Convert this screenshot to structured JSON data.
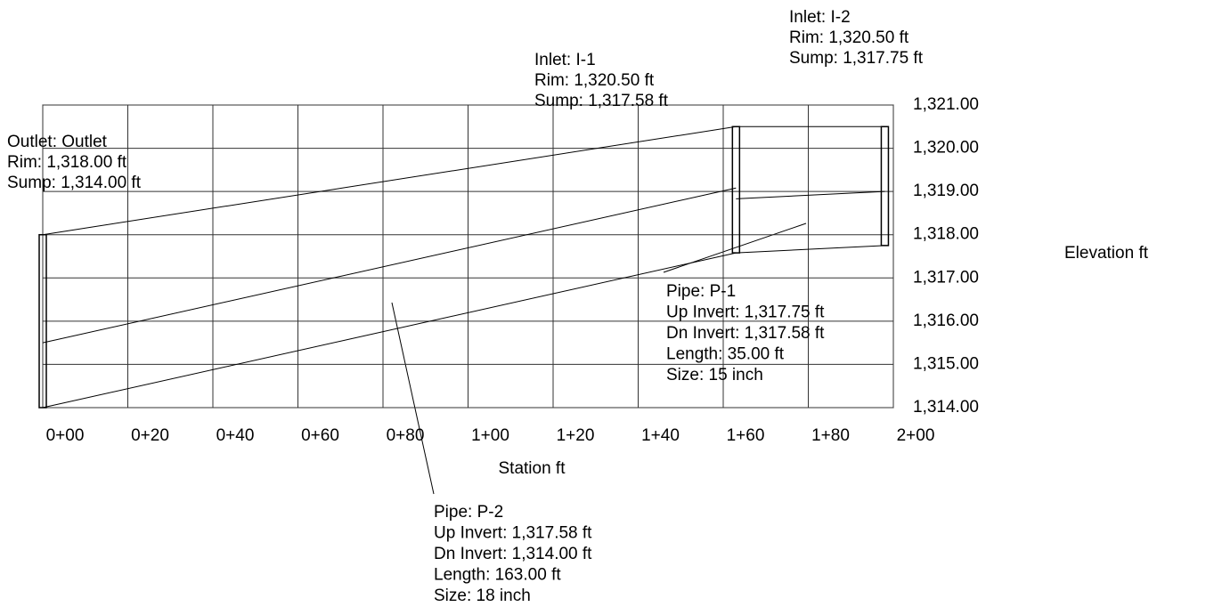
{
  "chart_data": {
    "type": "profile",
    "x_label": "Station  ft",
    "y_label": "Elevation  ft",
    "color": "#000000",
    "grid": true,
    "xlim": [
      0,
      200
    ],
    "xticks": [
      {
        "value": 0,
        "label": "0+00"
      },
      {
        "value": 20,
        "label": "0+20"
      },
      {
        "value": 40,
        "label": "0+40"
      },
      {
        "value": 60,
        "label": "0+60"
      },
      {
        "value": 80,
        "label": "0+80"
      },
      {
        "value": 100,
        "label": "1+00"
      },
      {
        "value": 120,
        "label": "1+20"
      },
      {
        "value": 140,
        "label": "1+40"
      },
      {
        "value": 160,
        "label": "1+60"
      },
      {
        "value": 180,
        "label": "1+80"
      },
      {
        "value": 200,
        "label": "2+00"
      }
    ],
    "ylim": [
      1314,
      1321
    ],
    "yticks": [
      {
        "value": 1314,
        "label": "1,314.00"
      },
      {
        "value": 1315,
        "label": "1,315.00"
      },
      {
        "value": 1316,
        "label": "1,316.00"
      },
      {
        "value": 1317,
        "label": "1,317.00"
      },
      {
        "value": 1318,
        "label": "1,318.00"
      },
      {
        "value": 1319,
        "label": "1,319.00"
      },
      {
        "value": 1320,
        "label": "1,320.00"
      },
      {
        "value": 1321,
        "label": "1,321.00"
      }
    ],
    "structures": [
      {
        "label": "Outlet: Outlet",
        "station": 0,
        "rim": 1318,
        "rim_label": "Rim: 1,318.00 ft",
        "sump": 1314,
        "sump_label": "Sump: 1,314.00 ft"
      },
      {
        "label": "Inlet: I-1",
        "station": 163,
        "rim": 1320.5,
        "rim_label": "Rim: 1,320.50 ft",
        "sump": 1317.58,
        "sump_label": "Sump: 1,317.58 ft"
      },
      {
        "label": "Inlet: I-2",
        "station": 198,
        "rim": 1320.5,
        "rim_label": "Rim: 1,320.50 ft",
        "sump": 1317.75,
        "sump_label": "Sump: 1,317.75 ft"
      }
    ],
    "pipes": [
      {
        "label": "Pipe: P-1",
        "start": 163,
        "end": 198,
        "up_invert": 1317.75,
        "up_label": "Up Invert: 1,317.75 ft",
        "dn_invert": 1317.58,
        "dn_label": "Dn Invert: 1,317.58 ft",
        "length": 35,
        "length_label": "Length: 35.00 ft",
        "size": 15,
        "size_label": "Size: 15 inch"
      },
      {
        "label": "Pipe: P-2",
        "start": 0,
        "end": 163,
        "up_invert": 1317.58,
        "up_label": "Up Invert: 1,317.58 ft",
        "dn_invert": 1314,
        "dn_label": "Dn Invert: 1,314.00 ft",
        "length": 163,
        "length_label": "Length: 163.00 ft",
        "size": 18,
        "size_label": "Size: 18 inch"
      }
    ]
  }
}
